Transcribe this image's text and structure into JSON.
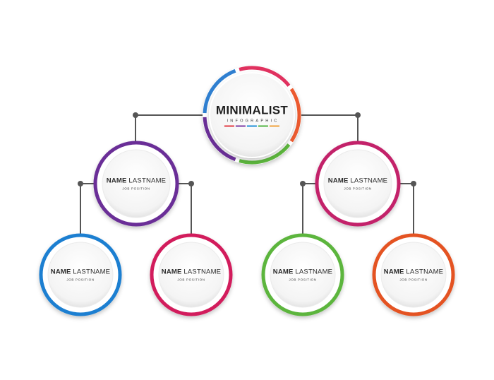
{
  "title": {
    "main": "MINIMALIST",
    "sub": "INFOGRAPHIC",
    "bar_colors": [
      "#e13a42",
      "#7b3aa3",
      "#1f8fd6",
      "#4fb341",
      "#f0a13a"
    ]
  },
  "nodes": [
    {
      "id": "root",
      "ring_color": "#cf2b60",
      "segment_colors": [
        "#e0315f",
        "#ec5a2f",
        "#5cb53d",
        "#6a2f97",
        "#2f7fd0"
      ]
    },
    {
      "id": "mid-left",
      "ring_color": "#6a2f97",
      "name_first": "NAME",
      "name_last": "LASTNAME",
      "position": "JOB POSITION"
    },
    {
      "id": "mid-right",
      "ring_color": "#c3236a",
      "name_first": "NAME",
      "name_last": "LASTNAME",
      "position": "JOB POSITION"
    },
    {
      "id": "leaf-1",
      "ring_color": "#1f7fd1",
      "name_first": "NAME",
      "name_last": "LASTNAME",
      "position": "JOB POSITION"
    },
    {
      "id": "leaf-2",
      "ring_color": "#d21f5c",
      "name_first": "NAME",
      "name_last": "LASTNAME",
      "position": "JOB POSITION"
    },
    {
      "id": "leaf-3",
      "ring_color": "#5cb53d",
      "name_first": "NAME",
      "name_last": "LASTNAME",
      "position": "JOB POSITION"
    },
    {
      "id": "leaf-4",
      "ring_color": "#e45324",
      "name_first": "NAME",
      "name_last": "LASTNAME",
      "position": "JOB POSITION"
    }
  ],
  "connector_color": "#555555"
}
